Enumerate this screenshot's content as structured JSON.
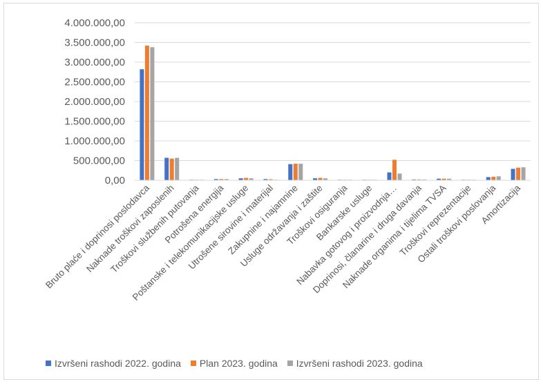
{
  "chart_data": {
    "type": "bar",
    "title": "",
    "xlabel": "",
    "ylabel": "",
    "ylim": [
      0,
      4000000
    ],
    "y_ticks": [
      "0,00",
      "500.000,00",
      "1.000.000,00",
      "1.500.000,00",
      "2.000.000,00",
      "2.500.000,00",
      "3.000.000,00",
      "3.500.000,00",
      "4.000.000,00"
    ],
    "grid": true,
    "legend_position": "bottom",
    "categories": [
      "Bruto plaće i doprinosi poslodavca",
      "Naknade troškovi  zaposlenih",
      "Troškovi službenih putovanja",
      "Potrošena energija",
      "Poštanske i telekomunikacijske usluge",
      "Utrošene sirovine i materijal",
      "Zakupnine i najamnine",
      "Usluge održavanja i zaštite",
      "Troškovi osiguranja",
      "Bankarske usluge",
      "Nabavka gotovog i proizvodnja…",
      "Doprinosi, članarine i druga davanja",
      "Naknade organima i tijelima TVSA",
      "Troškovi reprezentacije",
      "Ostali troškovi poslovanja",
      "Amortizacija"
    ],
    "series": [
      {
        "name": "Izvršeni rashodi 2022. godina",
        "color": "#4472c4",
        "values": [
          2820000,
          570000,
          10000,
          30000,
          50000,
          30000,
          410000,
          50000,
          5000,
          2000,
          200000,
          20000,
          40000,
          5000,
          80000,
          290000
        ]
      },
      {
        "name": "Plan 2023. godina",
        "color": "#ed7d31",
        "values": [
          3420000,
          550000,
          10000,
          30000,
          60000,
          25000,
          420000,
          60000,
          5000,
          2000,
          520000,
          20000,
          40000,
          5000,
          90000,
          320000
        ]
      },
      {
        "name": "Izvršeni rashodi 2023. godina",
        "color": "#a5a5a5",
        "values": [
          3380000,
          570000,
          10000,
          30000,
          50000,
          10000,
          420000,
          50000,
          5000,
          2000,
          170000,
          20000,
          40000,
          5000,
          100000,
          330000
        ]
      }
    ]
  }
}
